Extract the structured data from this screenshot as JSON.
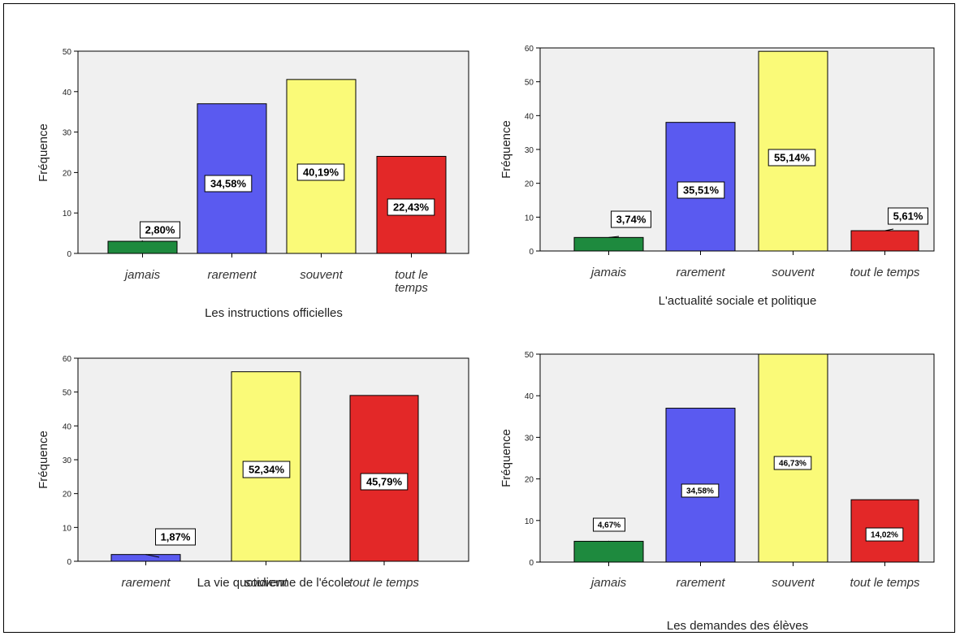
{
  "chart_data": [
    {
      "type": "bar",
      "xlabel": "Les instructions officielles",
      "ylabel": "Fréquence",
      "ylim": [
        0,
        50
      ],
      "yticks": [
        0,
        10,
        20,
        30,
        40,
        50
      ],
      "categories": [
        [
          "jamais"
        ],
        [
          "rarement"
        ],
        [
          "souvent"
        ],
        [
          "tout le",
          "temps"
        ]
      ],
      "values": [
        3,
        37,
        43,
        24
      ],
      "labels": [
        "2,80%",
        "34,58%",
        "40,19%",
        "22,43%"
      ],
      "colors": [
        "#1e8a3e",
        "#5a5af0",
        "#fafa78",
        "#e32828"
      ],
      "grid": false
    },
    {
      "type": "bar",
      "xlabel": "L'actualité sociale et politique",
      "ylabel": "Fréquence",
      "ylim": [
        0,
        60
      ],
      "yticks": [
        0,
        10,
        20,
        30,
        40,
        50,
        60
      ],
      "categories": [
        [
          "jamais"
        ],
        [
          "rarement"
        ],
        [
          "souvent"
        ],
        [
          "tout le temps"
        ]
      ],
      "values": [
        4,
        38,
        59,
        6
      ],
      "labels": [
        "3,74%",
        "35,51%",
        "55,14%",
        "5,61%"
      ],
      "colors": [
        "#1e8a3e",
        "#5a5af0",
        "#fafa78",
        "#e32828"
      ],
      "grid": false
    },
    {
      "type": "bar",
      "xlabel": "La vie quotidienne de l'école",
      "ylabel": "Fréquence",
      "ylim": [
        0,
        60
      ],
      "yticks": [
        0,
        10,
        20,
        30,
        40,
        50,
        60
      ],
      "categories": [
        [
          "rarement"
        ],
        [
          "souvent"
        ],
        [
          "tout le temps"
        ]
      ],
      "values": [
        2,
        56,
        49
      ],
      "labels": [
        "1,87%",
        "52,34%",
        "45,79%"
      ],
      "colors": [
        "#5a5af0",
        "#fafa78",
        "#e32828"
      ],
      "grid": false
    },
    {
      "type": "bar",
      "xlabel": "Les demandes des élèves",
      "ylabel": "Fréquence",
      "ylim": [
        0,
        50
      ],
      "yticks": [
        0,
        10,
        20,
        30,
        40,
        50
      ],
      "categories": [
        [
          "jamais"
        ],
        [
          "rarement"
        ],
        [
          "souvent"
        ],
        [
          "tout le temps"
        ]
      ],
      "values": [
        5,
        37,
        50,
        15
      ],
      "labels": [
        "4,67%",
        "34,58%",
        "46,73%",
        "14,02%"
      ],
      "colors": [
        "#1e8a3e",
        "#5a5af0",
        "#fafa78",
        "#e32828"
      ],
      "grid": false
    }
  ]
}
